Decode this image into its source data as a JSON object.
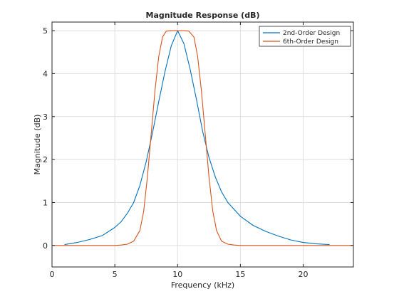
{
  "chart_data": {
    "type": "line",
    "title": "Magnitude Response (dB)",
    "xlabel": "Frequency (kHz)",
    "ylabel": "Magnitude (dB)",
    "xlim": [
      0,
      24
    ],
    "ylim": [
      -0.5,
      5.2
    ],
    "xticks": [
      0,
      5,
      10,
      15,
      20
    ],
    "yticks": [
      0,
      1,
      2,
      3,
      4,
      5
    ],
    "grid": true,
    "legend_position": "top-right",
    "series": [
      {
        "name": "2nd-Order Design",
        "color": "#0072BD",
        "x": [
          1,
          2,
          3,
          4,
          5,
          5.5,
          6,
          6.5,
          7,
          7.5,
          8,
          8.5,
          9,
          9.5,
          10,
          10.5,
          11,
          11.5,
          12,
          12.5,
          13,
          13.5,
          14,
          15,
          16,
          17,
          18,
          19,
          20,
          21,
          22.1
        ],
        "y": [
          0.02,
          0.07,
          0.14,
          0.23,
          0.42,
          0.55,
          0.75,
          1.0,
          1.4,
          1.95,
          2.62,
          3.35,
          4.05,
          4.65,
          5.0,
          4.7,
          4.1,
          3.4,
          2.65,
          2.05,
          1.6,
          1.25,
          1.0,
          0.68,
          0.47,
          0.33,
          0.22,
          0.13,
          0.07,
          0.04,
          0.02
        ]
      },
      {
        "name": "6th-Order Design",
        "color": "#D95319",
        "x": [
          0,
          5,
          5.5,
          6,
          6.5,
          7,
          7.3,
          7.6,
          7.9,
          8.2,
          8.5,
          8.8,
          9.1,
          9.5,
          10,
          10.5,
          10.9,
          11.3,
          11.6,
          11.9,
          12.2,
          12.5,
          12.8,
          13.1,
          13.5,
          14,
          14.5,
          15,
          24
        ],
        "y": [
          0,
          0,
          0.01,
          0.03,
          0.1,
          0.35,
          0.8,
          1.6,
          2.6,
          3.6,
          4.4,
          4.85,
          4.99,
          5.0,
          5.0,
          5.0,
          4.99,
          4.85,
          4.4,
          3.6,
          2.6,
          1.6,
          0.8,
          0.35,
          0.1,
          0.03,
          0.01,
          0,
          0
        ]
      }
    ]
  }
}
